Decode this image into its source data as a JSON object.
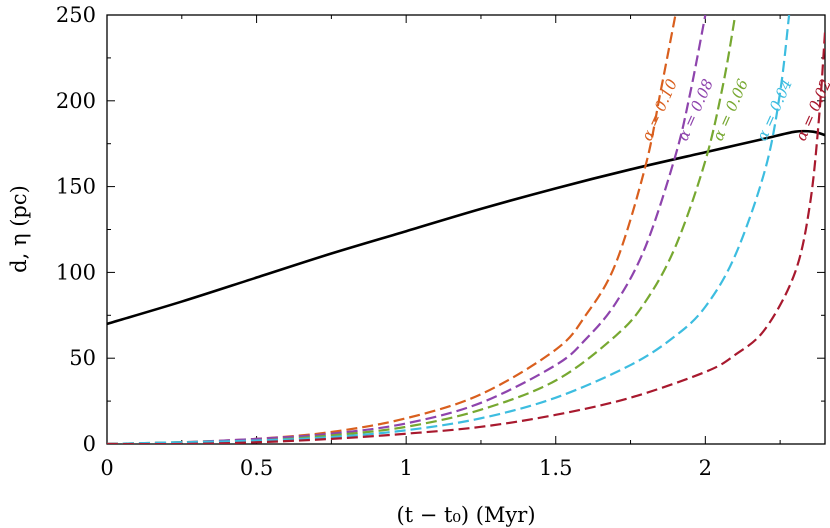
{
  "chart_data": {
    "type": "line",
    "title": "",
    "xlabel": "(t − t₀) (Myr)",
    "ylabel": "d, η (pc)",
    "xlim": [
      0,
      2.4
    ],
    "ylim": [
      0,
      250
    ],
    "x_ticks": [
      "0",
      "0.5",
      "1",
      "1.5",
      "2"
    ],
    "y_ticks": [
      "0",
      "50",
      "100",
      "150",
      "200",
      "250"
    ],
    "grid": false,
    "legend": "none",
    "series": [
      {
        "name": "",
        "color": "#000000",
        "dashed": false,
        "points": [
          [
            0,
            70
          ],
          [
            0.25,
            83
          ],
          [
            0.5,
            97
          ],
          [
            0.75,
            111
          ],
          [
            1.0,
            124
          ],
          [
            1.25,
            137
          ],
          [
            1.5,
            149
          ],
          [
            1.75,
            160
          ],
          [
            2.0,
            170
          ],
          [
            2.1,
            174
          ],
          [
            2.2,
            178
          ],
          [
            2.3,
            182
          ],
          [
            2.36,
            182
          ],
          [
            2.4,
            180
          ]
        ]
      },
      {
        "name": "α = 0.10",
        "color": "#d95f1e",
        "dashed": true,
        "points": [
          [
            0,
            0
          ],
          [
            0.25,
            1
          ],
          [
            0.5,
            3
          ],
          [
            0.75,
            7
          ],
          [
            1.0,
            15
          ],
          [
            1.25,
            29
          ],
          [
            1.5,
            55
          ],
          [
            1.6,
            75
          ],
          [
            1.7,
            105
          ],
          [
            1.8,
            162
          ],
          [
            1.85,
            205
          ],
          [
            1.9,
            250
          ]
        ]
      },
      {
        "name": "α = 0.08",
        "color": "#8e44ad",
        "dashed": true,
        "points": [
          [
            0,
            0
          ],
          [
            0.25,
            1
          ],
          [
            0.5,
            3
          ],
          [
            0.75,
            6
          ],
          [
            1.0,
            12
          ],
          [
            1.25,
            24
          ],
          [
            1.5,
            46
          ],
          [
            1.6,
            61
          ],
          [
            1.7,
            82
          ],
          [
            1.8,
            115
          ],
          [
            1.9,
            168
          ],
          [
            1.95,
            205
          ],
          [
            2.0,
            250
          ]
        ]
      },
      {
        "name": "α = 0.06",
        "color": "#77a831",
        "dashed": true,
        "points": [
          [
            0,
            0
          ],
          [
            0.25,
            1
          ],
          [
            0.5,
            2
          ],
          [
            0.75,
            5
          ],
          [
            1.0,
            10
          ],
          [
            1.25,
            20
          ],
          [
            1.5,
            37
          ],
          [
            1.7,
            63
          ],
          [
            1.8,
            83
          ],
          [
            1.9,
            115
          ],
          [
            2.0,
            165
          ],
          [
            2.06,
            210
          ],
          [
            2.1,
            250
          ]
        ]
      },
      {
        "name": "α = 0.04",
        "color": "#3dbde0",
        "dashed": true,
        "points": [
          [
            0,
            0
          ],
          [
            0.25,
            1
          ],
          [
            0.5,
            2
          ],
          [
            0.75,
            4
          ],
          [
            1.0,
            8
          ],
          [
            1.25,
            15
          ],
          [
            1.5,
            27
          ],
          [
            1.75,
            46
          ],
          [
            1.9,
            63
          ],
          [
            2.0,
            80
          ],
          [
            2.1,
            110
          ],
          [
            2.2,
            160
          ],
          [
            2.25,
            205
          ],
          [
            2.28,
            250
          ]
        ]
      },
      {
        "name": "α = 0.02",
        "color": "#a8192e",
        "dashed": true,
        "points": [
          [
            0,
            0
          ],
          [
            0.25,
            0
          ],
          [
            0.5,
            1
          ],
          [
            0.75,
            3
          ],
          [
            1.0,
            6
          ],
          [
            1.25,
            10
          ],
          [
            1.5,
            17
          ],
          [
            1.75,
            27
          ],
          [
            2.0,
            42
          ],
          [
            2.1,
            52
          ],
          [
            2.2,
            67
          ],
          [
            2.3,
            100
          ],
          [
            2.35,
            140
          ],
          [
            2.38,
            190
          ],
          [
            2.4,
            240
          ]
        ]
      }
    ]
  }
}
